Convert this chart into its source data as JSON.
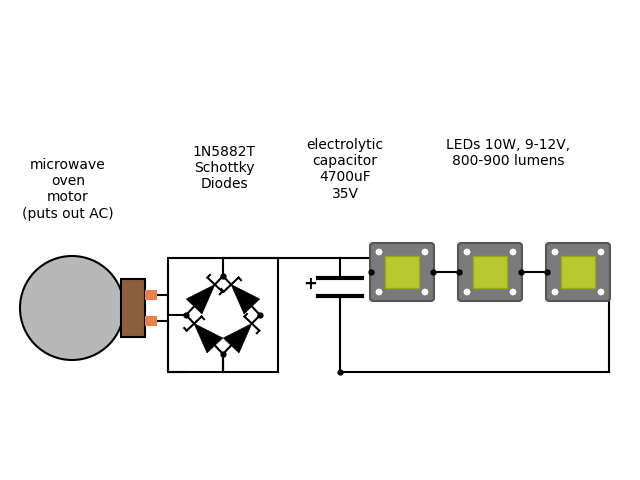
{
  "bg_color": "#ffffff",
  "line_color": "#000000",
  "motor_circle_color": "#b8b8b8",
  "motor_body_color": "#8B5E3C",
  "motor_pins_color": "#E8804A",
  "led_body_color": "#808080",
  "led_core_color": "#b8c830",
  "labels": {
    "motor": "microwave\noven\nmotor\n(puts out AC)",
    "diodes": "1N5882T\nSchottky\nDiodes",
    "capacitor": "electrolytic\ncapacitor\n4700uF\n35V",
    "leds": "LEDs 10W, 9-12V,\n800-900 lumens"
  },
  "font_size": 10
}
